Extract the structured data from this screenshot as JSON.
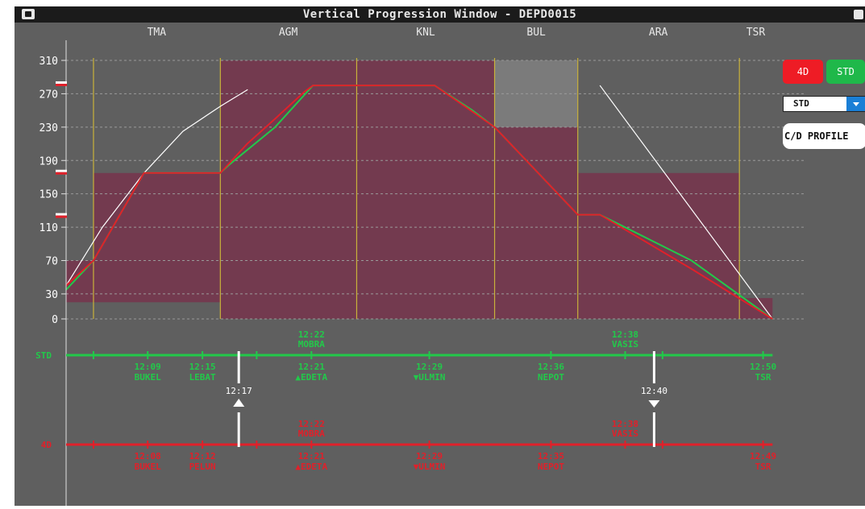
{
  "window": {
    "title": "Vertical Progression Window - DEPD0015"
  },
  "sectors": [
    "TMA",
    "AGM",
    "KNL",
    "BUL",
    "ARA",
    "TSR"
  ],
  "buttons": {
    "fourd": "4D",
    "std": "STD",
    "cd_profile": "C/D PROFILE"
  },
  "select": {
    "value": "STD"
  },
  "colors": {
    "background": "#5f5f5f",
    "sector_fill": "#733a4f",
    "std_green": "#22c94a",
    "fourd_red": "#e0202a",
    "sector_line": "#c9b23a",
    "reference": "#ffffff"
  },
  "chart_data": {
    "type": "line",
    "y_ticks": [
      310,
      270,
      230,
      190,
      150,
      110,
      70,
      30,
      0
    ],
    "ylim": [
      0,
      310
    ],
    "grid": true,
    "sector_blocks": [
      {
        "x0": 0.0,
        "x1": 0.052,
        "base": 20,
        "top": 70
      },
      {
        "x0": 0.052,
        "x1": 0.293,
        "base": 20,
        "top": 175
      },
      {
        "x0": 0.293,
        "x1": 0.814,
        "base": 0,
        "top": 310
      },
      {
        "x0": 0.814,
        "x1": 0.972,
        "base": 0,
        "top": 310,
        "inactive_above": 230
      },
      {
        "x0": 0.972,
        "x1": 1.279,
        "base": 0,
        "top": 175
      },
      {
        "x0": 1.279,
        "x1": 1.342,
        "base": 0,
        "top": 25
      }
    ],
    "series": [
      {
        "color": "#22c94a",
        "x": [
          0.0,
          0.052,
          0.148,
          0.293,
          0.31,
          0.397,
          0.469,
          0.7,
          0.772,
          0.814,
          0.972,
          1.014,
          1.188,
          1.342
        ],
        "y": [
          35,
          70,
          175,
          175,
          185,
          230,
          280,
          280,
          250,
          230,
          125,
          125,
          70,
          0
        ]
      },
      {
        "color": "#e0202a",
        "x": [
          0.0,
          0.052,
          0.148,
          0.293,
          0.344,
          0.397,
          0.452,
          0.469,
          0.7,
          0.814,
          0.972,
          1.014,
          1.188,
          1.342
        ],
        "y": [
          40,
          70,
          175,
          175,
          210,
          240,
          272,
          280,
          280,
          230,
          125,
          125,
          60,
          0
        ]
      }
    ],
    "reference_climb": {
      "x": [
        0.0,
        0.069,
        0.148,
        0.222,
        0.293,
        0.345
      ],
      "y": [
        40,
        110,
        175,
        225,
        255,
        275
      ]
    },
    "reference_descent": {
      "x": [
        1.014,
        1.342
      ],
      "y": [
        280,
        0
      ]
    },
    "sector_bounds": [
      0.052,
      0.293,
      0.552,
      0.814,
      0.972,
      1.279
    ],
    "std_timeline": {
      "label": "STD",
      "ticks": [
        0.052,
        0.155,
        0.259,
        0.362,
        0.466,
        0.69,
        0.921,
        1.062,
        1.133,
        1.324
      ],
      "waypoints": [
        {
          "x": 0.155,
          "time": "12:09",
          "name": "BUKEL",
          "row": "below",
          "symbol": ""
        },
        {
          "x": 0.259,
          "time": "12:15",
          "name": "LEBAT",
          "row": "below",
          "symbol": ""
        },
        {
          "x": 0.466,
          "time": "12:21",
          "name": "EDETA",
          "row": "below",
          "symbol": "▲"
        },
        {
          "x": 0.69,
          "time": "12:29",
          "name": "ULMIN",
          "row": "below",
          "symbol": "▼"
        },
        {
          "x": 0.921,
          "time": "12:36",
          "name": "NEPOT",
          "row": "below",
          "symbol": ""
        },
        {
          "x": 1.324,
          "time": "12:50",
          "name": "TSR",
          "row": "below",
          "symbol": ""
        },
        {
          "x": 0.466,
          "time": "12:22",
          "name": "MOBRA",
          "row": "above",
          "symbol": ""
        },
        {
          "x": 1.062,
          "time": "12:38",
          "name": "VASIS",
          "row": "above",
          "symbol": ""
        }
      ]
    },
    "fourd_timeline": {
      "label": "4D",
      "ticks": [
        0.052,
        0.155,
        0.259,
        0.362,
        0.466,
        0.69,
        0.921,
        1.062,
        1.133,
        1.324
      ],
      "waypoints": [
        {
          "x": 0.155,
          "time": "12:08",
          "name": "BUKEL",
          "row": "below",
          "symbol": ""
        },
        {
          "x": 0.259,
          "time": "12:12",
          "name": "PELUN",
          "row": "below",
          "symbol": ""
        },
        {
          "x": 0.466,
          "time": "12:21",
          "name": "EDETA",
          "row": "below",
          "symbol": "▲"
        },
        {
          "x": 0.69,
          "time": "12:29",
          "name": "ULMIN",
          "row": "below",
          "symbol": "▼"
        },
        {
          "x": 0.921,
          "time": "12:35",
          "name": "NEPOT",
          "row": "below",
          "symbol": ""
        },
        {
          "x": 1.324,
          "time": "12:49",
          "name": "TSR",
          "row": "below",
          "symbol": ""
        },
        {
          "x": 0.466,
          "time": "12:22",
          "name": "MOBRA",
          "row": "above",
          "symbol": ""
        },
        {
          "x": 1.062,
          "time": "12:38",
          "name": "VASIS",
          "row": "above",
          "symbol": ""
        }
      ]
    },
    "time_markers": [
      {
        "x": 0.328,
        "label": "12:17",
        "direction": "up"
      },
      {
        "x": 1.117,
        "label": "12:40",
        "direction": "down"
      }
    ]
  }
}
